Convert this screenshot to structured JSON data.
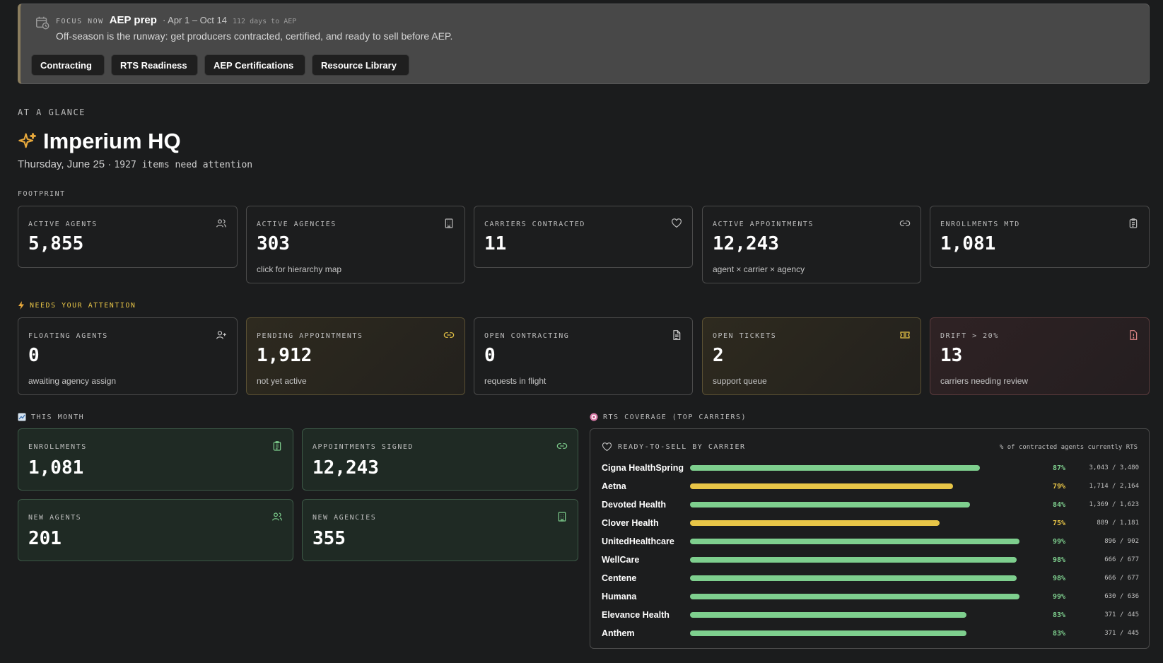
{
  "focus": {
    "tag": "FOCUS NOW",
    "title": "AEP prep",
    "dates": "· Apr 1 – Oct 14",
    "days": "112 days to AEP",
    "description": "Off-season is the runway: get producers contracted, certified, and ready to sell before AEP.",
    "buttons": [
      "Contracting",
      "RTS Readiness",
      "AEP Certifications",
      "Resource Library"
    ]
  },
  "header": {
    "eyebrow": "AT A GLANCE",
    "title": "Imperium HQ",
    "date": "Thursday, June 25 ·",
    "attention": "1927 items need attention"
  },
  "footprint": {
    "label": "FOOTPRINT",
    "cards": [
      {
        "label": "ACTIVE AGENTS",
        "value": "5,855",
        "sub": "",
        "icon": "users-icon"
      },
      {
        "label": "ACTIVE AGENCIES",
        "value": "303",
        "sub": "click for hierarchy map",
        "icon": "building-icon"
      },
      {
        "label": "CARRIERS CONTRACTED",
        "value": "11",
        "sub": "",
        "icon": "heart-icon"
      },
      {
        "label": "ACTIVE APPOINTMENTS",
        "value": "12,243",
        "sub": "agent × carrier × agency",
        "icon": "link-icon"
      },
      {
        "label": "ENROLLMENTS MTD",
        "value": "1,081",
        "sub": "",
        "icon": "clipboard-icon"
      }
    ]
  },
  "attention": {
    "label": "NEEDS YOUR ATTENTION",
    "cards": [
      {
        "label": "FLOATING AGENTS",
        "value": "0",
        "sub": "awaiting agency assign",
        "icon": "user-plus-icon"
      },
      {
        "label": "PENDING APPOINTMENTS",
        "value": "1,912",
        "sub": "not yet active",
        "icon": "link-icon"
      },
      {
        "label": "OPEN CONTRACTING",
        "value": "0",
        "sub": "requests in flight",
        "icon": "document-icon"
      },
      {
        "label": "OPEN TICKETS",
        "value": "2",
        "sub": "support queue",
        "icon": "ticket-icon"
      },
      {
        "label": "DRIFT > 20%",
        "value": "13",
        "sub": "carriers needing review",
        "icon": "alert-icon"
      }
    ]
  },
  "month": {
    "label": "THIS MONTH",
    "cards": [
      {
        "label": "ENROLLMENTS",
        "value": "1,081",
        "icon": "clipboard-icon"
      },
      {
        "label": "APPOINTMENTS SIGNED",
        "value": "12,243",
        "icon": "link-icon"
      },
      {
        "label": "NEW AGENTS",
        "value": "201",
        "icon": "users-icon"
      },
      {
        "label": "NEW AGENCIES",
        "value": "355",
        "icon": "building-icon"
      }
    ]
  },
  "rts": {
    "label": "RTS COVERAGE (TOP CARRIERS)",
    "panel_title": "READY-TO-SELL BY CARRIER",
    "panel_note": "% of contracted agents currently RTS",
    "colors": {
      "high": "#7ecf8e",
      "mid": "#e8c547"
    },
    "rows": [
      {
        "name": "Cigna HealthSpring",
        "pct": 87,
        "pct_label": "87%",
        "count": "3,043 / 3,480",
        "level": "high"
      },
      {
        "name": "Aetna",
        "pct": 79,
        "pct_label": "79%",
        "count": "1,714 / 2,164",
        "level": "mid"
      },
      {
        "name": "Devoted Health",
        "pct": 84,
        "pct_label": "84%",
        "count": "1,369 / 1,623",
        "level": "high"
      },
      {
        "name": "Clover Health",
        "pct": 75,
        "pct_label": "75%",
        "count": "889 / 1,181",
        "level": "mid"
      },
      {
        "name": "UnitedHealthcare",
        "pct": 99,
        "pct_label": "99%",
        "count": "896 / 902",
        "level": "high"
      },
      {
        "name": "WellCare",
        "pct": 98,
        "pct_label": "98%",
        "count": "666 / 677",
        "level": "high"
      },
      {
        "name": "Centene",
        "pct": 98,
        "pct_label": "98%",
        "count": "666 / 677",
        "level": "high"
      },
      {
        "name": "Humana",
        "pct": 99,
        "pct_label": "99%",
        "count": "630 / 636",
        "level": "high"
      },
      {
        "name": "Elevance Health",
        "pct": 83,
        "pct_label": "83%",
        "count": "371 / 445",
        "level": "high"
      },
      {
        "name": "Anthem",
        "pct": 83,
        "pct_label": "83%",
        "count": "371 / 445",
        "level": "high"
      }
    ]
  }
}
